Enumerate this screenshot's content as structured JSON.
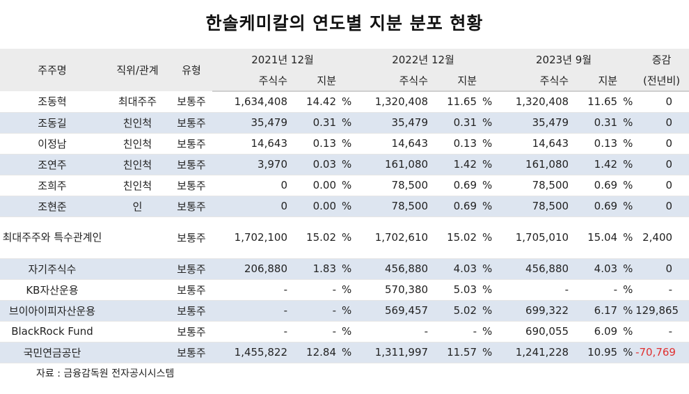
{
  "title": "한솔케미칼의 연도별 지분 분포 현황",
  "header": {
    "name": "주주명",
    "role": "직위/관계",
    "type": "유형",
    "p2021": "2021년 12월",
    "p2022": "2022년 12월",
    "p2023": "2023년 9월",
    "change": "증감",
    "change_sub": "(전년비)",
    "shares": "주식수",
    "stake": "지분"
  },
  "rows": [
    {
      "name": "조동혁",
      "role": "최대주주",
      "type": "보통주",
      "s21": "1,634,408",
      "p21": "14.42",
      "u21": "%",
      "s22": "1,320,408",
      "p22": "11.65",
      "u22": "%",
      "s23": "1,320,408",
      "p23": "11.65",
      "u23": "%",
      "chg": "0"
    },
    {
      "name": "조동길",
      "role": "친인척",
      "type": "보통주",
      "s21": "35,479",
      "p21": "0.31",
      "u21": "%",
      "s22": "35,479",
      "p22": "0.31",
      "u22": "%",
      "s23": "35,479",
      "p23": "0.31",
      "u23": "%",
      "chg": "0"
    },
    {
      "name": "이정남",
      "role": "친인척",
      "type": "보통주",
      "s21": "14,643",
      "p21": "0.13",
      "u21": "%",
      "s22": "14,643",
      "p22": "0.13",
      "u22": "%",
      "s23": "14,643",
      "p23": "0.13",
      "u23": "%",
      "chg": "0"
    },
    {
      "name": "조연주",
      "role": "친인척",
      "type": "보통주",
      "s21": "3,970",
      "p21": "0.03",
      "u21": "%",
      "s22": "161,080",
      "p22": "1.42",
      "u22": "%",
      "s23": "161,080",
      "p23": "1.42",
      "u23": "%",
      "chg": "0"
    },
    {
      "name": "조희주",
      "role": "친인척",
      "type": "보통주",
      "s21": "0",
      "p21": "0.00",
      "u21": "%",
      "s22": "78,500",
      "p22": "0.69",
      "u22": "%",
      "s23": "78,500",
      "p23": "0.69",
      "u23": "%",
      "chg": "0"
    },
    {
      "name": "조현준",
      "role": "인",
      "type": "보통주",
      "s21": "0",
      "p21": "0.00",
      "u21": "%",
      "s22": "78,500",
      "p22": "0.69",
      "u22": "%",
      "s23": "78,500",
      "p23": "0.69",
      "u23": "%",
      "chg": "0"
    },
    {
      "name": "최대주주와 특수관계인",
      "role": "",
      "type": "보통주",
      "s21": "1,702,100",
      "p21": "15.02",
      "u21": "%",
      "s22": "1,702,610",
      "p22": "15.02",
      "u22": "%",
      "s23": "1,705,010",
      "p23": "15.04",
      "u23": "%",
      "chg": "2,400"
    },
    {
      "name": "자기주식수",
      "role": "",
      "type": "보통주",
      "s21": "206,880",
      "p21": "1.83",
      "u21": "%",
      "s22": "456,880",
      "p22": "4.03",
      "u22": "%",
      "s23": "456,880",
      "p23": "4.03",
      "u23": "%",
      "chg": "0"
    },
    {
      "name": "KB자산운용",
      "role": "",
      "type": "보통주",
      "s21": "-",
      "p21": "-",
      "u21": "%",
      "s22": "570,380",
      "p22": "5.03",
      "u22": "%",
      "s23": "-",
      "p23": "-",
      "u23": "%",
      "chg": "-"
    },
    {
      "name": "브이아이피자산운용",
      "role": "",
      "type": "보통주",
      "s21": "-",
      "p21": "-",
      "u21": "%",
      "s22": "569,457",
      "p22": "5.02",
      "u22": "%",
      "s23": "699,322",
      "p23": "6.17",
      "u23": "%",
      "chg": "129,865"
    },
    {
      "name": "BlackRock Fund",
      "role": "",
      "type": "보통주",
      "s21": "-",
      "p21": "-",
      "u21": "%",
      "s22": "-",
      "p22": "-",
      "u22": "%",
      "s23": "690,055",
      "p23": "6.09",
      "u23": "%",
      "chg": "-"
    },
    {
      "name": "국민연금공단",
      "role": "",
      "type": "보통주",
      "s21": "1,455,822",
      "p21": "12.84",
      "u21": "%",
      "s22": "1,311,997",
      "p22": "11.57",
      "u22": "%",
      "s23": "1,241,228",
      "p23": "10.95",
      "u23": "%",
      "chg": "-70,769"
    }
  ],
  "source": "자료 : 금융감독원 전자공시시스템",
  "colors": {
    "alt_row": "#dde5f0",
    "header_bg": "#ececec",
    "negative": "#e03030"
  }
}
